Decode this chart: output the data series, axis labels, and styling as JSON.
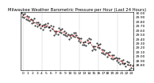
{
  "title": "Milwaukee Weather Barometric Pressure per Hour (Last 24 Hours)",
  "hours": [
    0,
    1,
    2,
    3,
    4,
    5,
    6,
    7,
    8,
    9,
    10,
    11,
    12,
    13,
    14,
    15,
    16,
    17,
    18,
    19,
    20,
    21,
    22,
    23
  ],
  "pressure": [
    29.95,
    29.88,
    29.82,
    29.74,
    29.68,
    29.72,
    29.65,
    29.55,
    29.6,
    29.52,
    29.46,
    29.5,
    29.38,
    29.3,
    29.35,
    29.2,
    29.25,
    29.1,
    29.05,
    28.98,
    28.92,
    28.87,
    28.82,
    28.76
  ],
  "scatter_offsets": [
    [
      0.05,
      -0.03,
      0.02,
      -0.05,
      0.04
    ],
    [
      -0.02,
      0.06,
      -0.04,
      0.03,
      -0.06
    ],
    [
      0.04,
      -0.06,
      0.02,
      -0.03,
      0.05
    ],
    [
      -0.03,
      0.05,
      -0.05,
      0.04,
      -0.02
    ],
    [
      0.06,
      -0.02,
      0.03,
      -0.06,
      0.04
    ],
    [
      -0.04,
      0.02,
      -0.03,
      0.05,
      -0.05
    ],
    [
      0.03,
      -0.05,
      0.06,
      -0.02,
      0.04
    ],
    [
      -0.06,
      0.04,
      -0.02,
      0.03,
      -0.04
    ],
    [
      0.05,
      -0.03,
      0.02,
      -0.06,
      0.04
    ],
    [
      -0.02,
      0.06,
      -0.04,
      0.03,
      -0.05
    ],
    [
      0.04,
      -0.06,
      0.03,
      -0.02,
      0.05
    ],
    [
      -0.03,
      0.05,
      -0.05,
      0.04,
      -0.02
    ],
    [
      0.06,
      -0.02,
      0.04,
      -0.06,
      0.03
    ],
    [
      -0.04,
      0.03,
      -0.03,
      0.05,
      -0.05
    ],
    [
      0.03,
      -0.05,
      0.06,
      -0.02,
      0.04
    ],
    [
      -0.06,
      0.04,
      -0.02,
      0.03,
      -0.04
    ],
    [
      0.05,
      -0.03,
      0.02,
      -0.06,
      0.04
    ],
    [
      -0.02,
      0.05,
      -0.04,
      0.03,
      -0.05
    ],
    [
      0.04,
      -0.06,
      0.03,
      -0.02,
      0.05
    ],
    [
      -0.03,
      0.05,
      -0.05,
      0.04,
      -0.02
    ],
    [
      0.06,
      -0.02,
      0.04,
      -0.06,
      0.03
    ],
    [
      -0.04,
      0.03,
      -0.03,
      0.05,
      -0.05
    ],
    [
      0.03,
      -0.05,
      0.06,
      -0.02,
      0.04
    ],
    [
      -0.06,
      0.04,
      -0.02,
      0.03,
      -0.04
    ]
  ],
  "ylim": [
    28.68,
    30.02
  ],
  "yticks": [
    28.8,
    28.9,
    29.0,
    29.1,
    29.2,
    29.3,
    29.4,
    29.5,
    29.6,
    29.7,
    29.8,
    29.9,
    30.0
  ],
  "xlim": [
    -0.5,
    23.5
  ],
  "xticks": [
    0,
    1,
    2,
    3,
    4,
    5,
    6,
    7,
    8,
    9,
    10,
    11,
    12,
    13,
    14,
    15,
    16,
    17,
    18,
    19,
    20,
    21,
    22,
    23
  ],
  "xtick_labels": [
    "0",
    "1",
    "2",
    "3",
    "4",
    "5",
    "6",
    "7",
    "8",
    "9",
    "10",
    "11",
    "12",
    "13",
    "14",
    "15",
    "16",
    "17",
    "18",
    "19",
    "20",
    "21",
    "22",
    "23"
  ],
  "line_color": "#ff0000",
  "marker_color": "#000000",
  "grid_color": "#888888",
  "bg_color": "#ffffff",
  "tick_fontsize": 3.2,
  "title_fontsize": 3.8,
  "grid_positions": [
    0,
    4,
    8,
    12,
    16,
    20
  ]
}
